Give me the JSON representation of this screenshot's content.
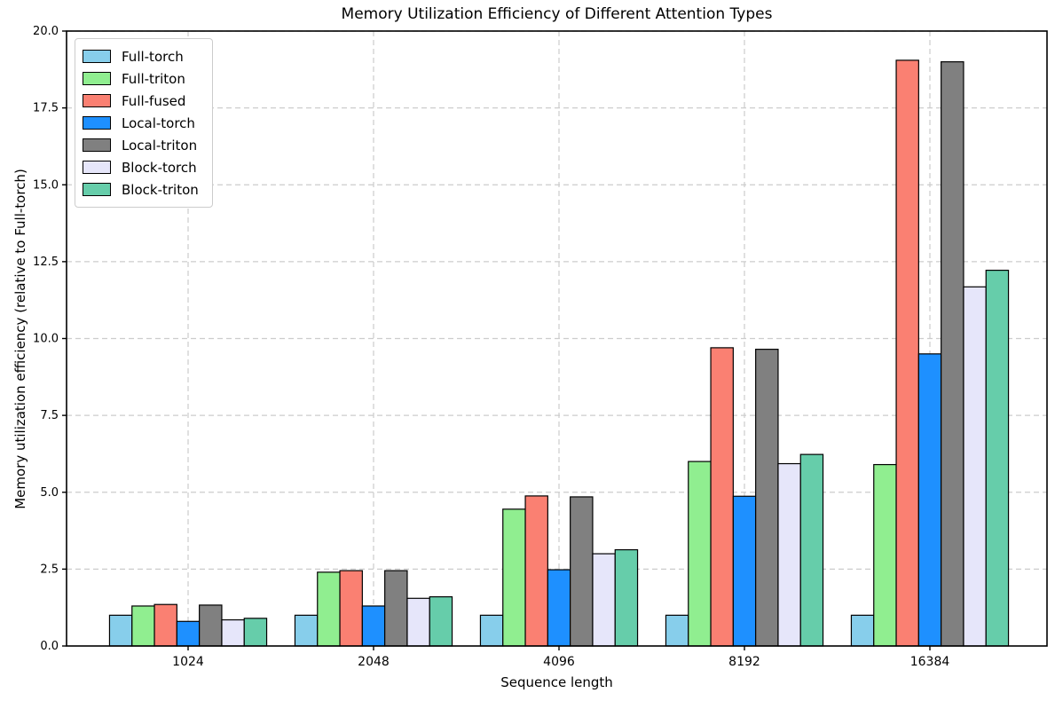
{
  "chart_data": {
    "type": "bar",
    "title": "Memory Utilization Efficiency of Different Attention Types",
    "xlabel": "Sequence length",
    "ylabel": "Memory utilization efficiency (relative to Full-torch)",
    "categories": [
      "1024",
      "2048",
      "4096",
      "8192",
      "16384"
    ],
    "series": [
      {
        "name": "Full-torch",
        "color": "#87CEEB",
        "values": [
          1.0,
          1.0,
          1.0,
          1.0,
          1.0
        ]
      },
      {
        "name": "Full-triton",
        "color": "#90EE90",
        "values": [
          1.3,
          2.4,
          4.45,
          6.0,
          5.9
        ]
      },
      {
        "name": "Full-fused",
        "color": "#FA8072",
        "values": [
          1.35,
          2.45,
          4.88,
          9.7,
          19.05
        ]
      },
      {
        "name": "Local-torch",
        "color": "#1E90FF",
        "values": [
          0.8,
          1.3,
          2.48,
          4.87,
          9.5
        ]
      },
      {
        "name": "Local-triton",
        "color": "#808080",
        "values": [
          1.33,
          2.45,
          4.85,
          9.65,
          19.0
        ]
      },
      {
        "name": "Block-torch",
        "color": "#E6E6FA",
        "values": [
          0.85,
          1.55,
          3.0,
          5.93,
          11.68
        ]
      },
      {
        "name": "Block-triton",
        "color": "#66CDAA",
        "values": [
          0.9,
          1.6,
          3.13,
          6.23,
          12.22
        ]
      }
    ],
    "ylim": [
      0,
      20
    ],
    "ytick_step": 2.5,
    "ytick_labels": [
      "0.0",
      "2.5",
      "5.0",
      "7.5",
      "10.0",
      "12.5",
      "15.0",
      "17.5",
      "20.0"
    ],
    "grid": true,
    "legend_position": "upper-left",
    "bar_edge_color": "#000000",
    "grid_color": "#cccccc",
    "spine_color": "#000000"
  }
}
